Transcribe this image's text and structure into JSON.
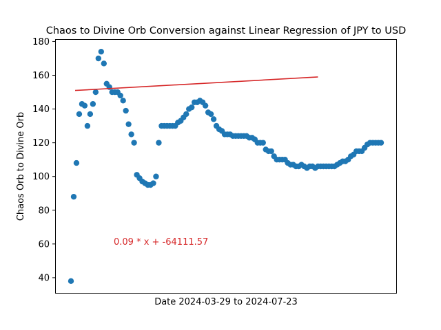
{
  "chart_data": {
    "type": "scatter",
    "title": "Chaos to Divine Orb Conversion against Linear Regression of JPY to USD",
    "xlabel": "Date 2024-03-29 to 2024-07-23",
    "ylabel": "Chaos Orb to Divine Orb",
    "ylim": [
      31,
      181
    ],
    "yticks": [
      40,
      60,
      80,
      100,
      120,
      140,
      160,
      180
    ],
    "grid": false,
    "x_start": "2024-03-29",
    "x_end": "2024-07-23",
    "colors": {
      "points": "#1f77b4",
      "regression": "#d62728",
      "annotation": "#d62728"
    },
    "series": [
      {
        "values": [
          38,
          88,
          108,
          137,
          143,
          142,
          130,
          137,
          143,
          150,
          170,
          174,
          167,
          155,
          153,
          150,
          150,
          150,
          148,
          145,
          139,
          131,
          125,
          120,
          101,
          99,
          97,
          96,
          95,
          95,
          96,
          100,
          120,
          130,
          130,
          130,
          130,
          130,
          130,
          132,
          133,
          135,
          137,
          140,
          141,
          144,
          144,
          145,
          144,
          142,
          138,
          137,
          134,
          130,
          128,
          127,
          125,
          125,
          125,
          124,
          124,
          124,
          124,
          124,
          124,
          123,
          123,
          122,
          120,
          120,
          120,
          116,
          115,
          115,
          112,
          110,
          110,
          110,
          110,
          108,
          107,
          107,
          106,
          106,
          107,
          106,
          105,
          106,
          106,
          105,
          106,
          106,
          106,
          106,
          106,
          106,
          106,
          107,
          108,
          109,
          109,
          110,
          112,
          113,
          115,
          115,
          115,
          117,
          119,
          120,
          120,
          120,
          120,
          120
        ]
      }
    ],
    "regression": {
      "label": "0.09 * x + -64111.57",
      "start": [
        0,
        151
      ],
      "end": [
        90,
        159
      ]
    }
  }
}
